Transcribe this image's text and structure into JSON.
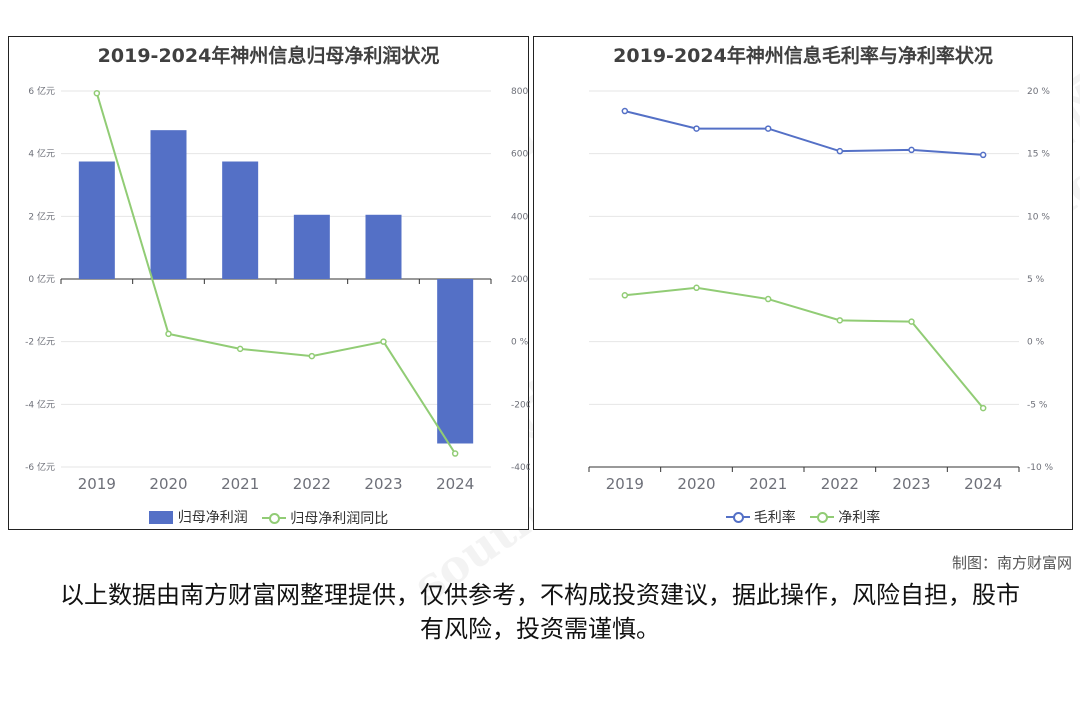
{
  "charts": {
    "left": {
      "title": "2019-2024年神州信息归母净利润状况",
      "legend": [
        "归母净利润",
        "归母净利润同比"
      ],
      "left_ticks": [
        "6 亿元",
        "4 亿元",
        "2 亿元",
        "0 亿元",
        "-2 亿元",
        "-4 亿元",
        "-6 亿元"
      ],
      "right_ticks": [
        "800 %",
        "600 %",
        "400 %",
        "200 %",
        "0 %",
        "-200 %",
        "-400 %"
      ]
    },
    "right": {
      "title": "2019-2024年神州信息毛利率与净利率状况",
      "legend": [
        "毛利率",
        "净利率"
      ],
      "right_ticks": [
        "20 %",
        "15 %",
        "10 %",
        "5 %",
        "0 %",
        "-5 %",
        "-10 %"
      ]
    }
  },
  "chart_data": [
    {
      "type": "bar",
      "title": "2019-2024年神州信息归母净利润状况",
      "categories": [
        "2019",
        "2020",
        "2021",
        "2022",
        "2023",
        "2024"
      ],
      "series": [
        {
          "name": "归母净利润",
          "type": "bar",
          "axis": "left",
          "unit": "亿元",
          "values": [
            3.75,
            4.75,
            3.75,
            2.05,
            2.05,
            -5.25
          ]
        },
        {
          "name": "归母净利润同比",
          "type": "line",
          "axis": "right",
          "unit": "%",
          "values": [
            793,
            25,
            -23,
            -46,
            0,
            -357
          ]
        }
      ],
      "ylim_left": [
        -6,
        6
      ],
      "ylim_right": [
        -400,
        800
      ],
      "colors": {
        "bar": "#5470c6",
        "line": "#91cc75"
      },
      "grid": true,
      "legend_position": "bottom"
    },
    {
      "type": "line",
      "title": "2019-2024年神州信息毛利率与净利率状况",
      "categories": [
        "2019",
        "2020",
        "2021",
        "2022",
        "2023",
        "2024"
      ],
      "series": [
        {
          "name": "毛利率",
          "unit": "%",
          "values": [
            18.4,
            17.0,
            17.0,
            15.2,
            15.3,
            14.9
          ]
        },
        {
          "name": "净利率",
          "unit": "%",
          "values": [
            3.7,
            4.3,
            3.4,
            1.7,
            1.6,
            -5.3
          ]
        }
      ],
      "ylim": [
        -10,
        20
      ],
      "y_axis_side": "right",
      "colors": {
        "毛利率": "#5470c6",
        "净利率": "#91cc75"
      },
      "grid": true,
      "legend_position": "bottom"
    }
  ],
  "footer": {
    "credit": "制图：南方财富网",
    "disclaimer": "以上数据由南方财富网整理提供，仅供参考，不构成投资建议，据此操作，风险自担，股市有风险，投资需谨慎。"
  },
  "watermark": {
    "text1": "南方财富网",
    "text2": "southmoney.com"
  }
}
